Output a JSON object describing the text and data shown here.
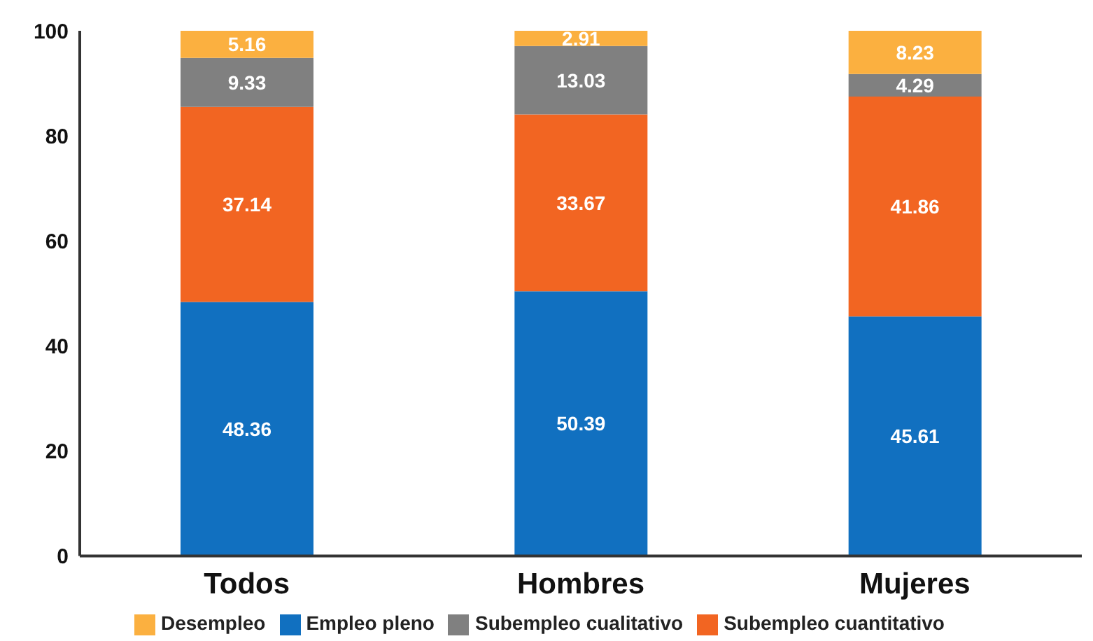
{
  "chart_data": {
    "type": "bar",
    "stacked": true,
    "data_labels": true,
    "legend": "bottom",
    "categories": [
      "Todos",
      "Hombres",
      "Mujeres"
    ],
    "series": [
      {
        "name": "Empleo pleno",
        "color": "#1170c0",
        "values": [
          48.36,
          50.39,
          45.61
        ]
      },
      {
        "name": "Subempleo cuantitativo",
        "color": "#f26522",
        "values": [
          37.14,
          33.67,
          41.86
        ]
      },
      {
        "name": "Subempleo cualitativo",
        "color": "#808080",
        "values": [
          9.33,
          13.03,
          4.29
        ]
      },
      {
        "name": "Desempleo",
        "color": "#fbb040",
        "values": [
          5.16,
          2.91,
          8.23
        ]
      }
    ],
    "ylim": [
      0,
      100
    ],
    "yticks": [
      0,
      20,
      40,
      60,
      80,
      100
    ]
  }
}
